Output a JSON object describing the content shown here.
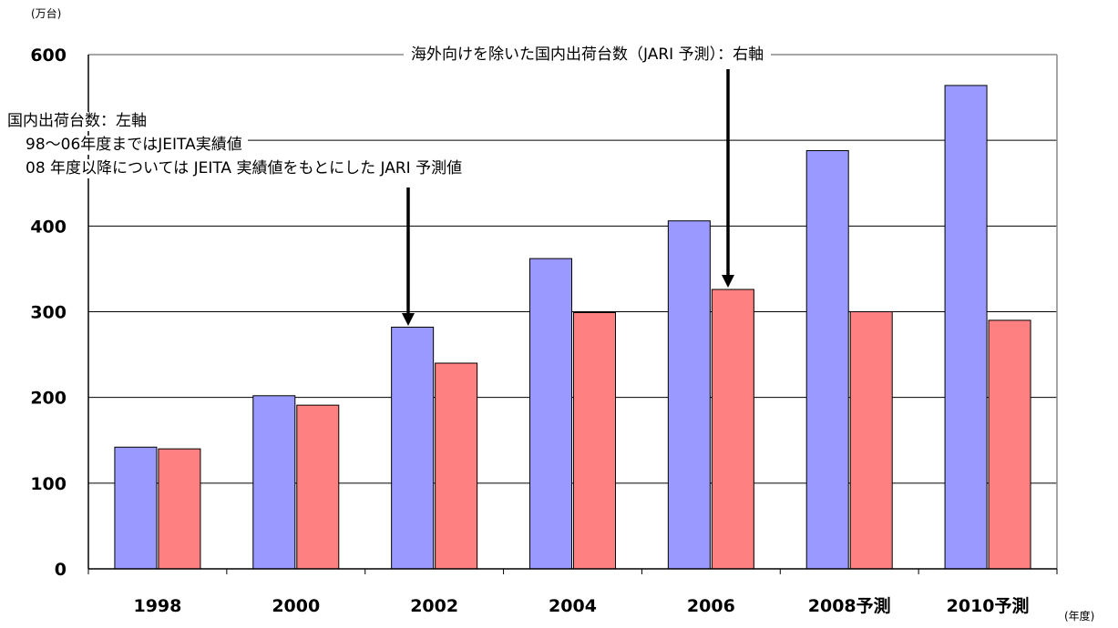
{
  "chart_data": {
    "type": "bar",
    "categories": [
      "1998",
      "2000",
      "2002",
      "2004",
      "2006",
      "2008予測",
      "2010予測"
    ],
    "series": [
      {
        "values": [
          142,
          202,
          282,
          362,
          406,
          488,
          564
        ],
        "color": "#9999ff"
      },
      {
        "values": [
          140,
          191,
          240,
          299,
          326,
          300,
          290
        ],
        "color": "#ff8080"
      }
    ],
    "ylim": [
      0,
      600
    ],
    "yticks": [
      0,
      100,
      200,
      300,
      400,
      500,
      600
    ],
    "grid": true,
    "y_unit": "(万台)",
    "x_unit": "(年度)",
    "annotations": {
      "domestic_line1": "国内出荷台数：左軸",
      "domestic_line2": "98〜06年度まではJEITA実績値",
      "domestic_line3": "08 年度以降については JEITA 実績値をもとにした JARI 予測値",
      "export_excluded": "海外向けを除いた国内出荷台数（JARI 予測）：右軸"
    }
  }
}
